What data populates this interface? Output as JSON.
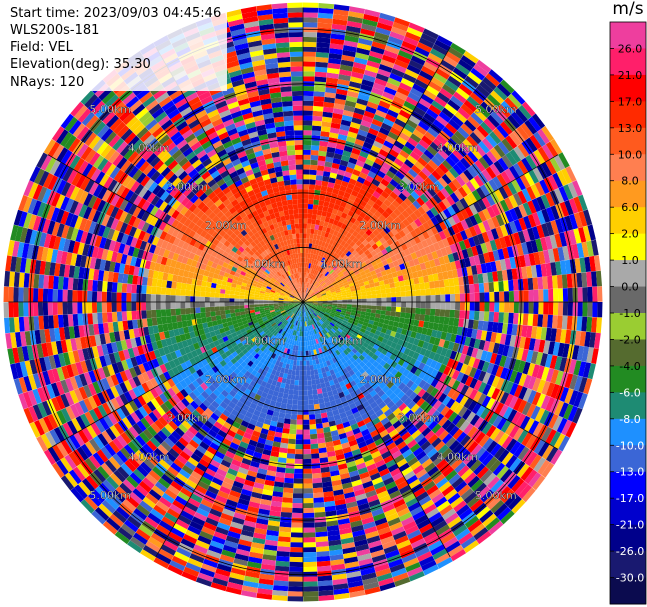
{
  "info": {
    "start_time": "Start time: 2023/09/03 04:45:46",
    "instrument": "WLS200s-181",
    "field": "Field: VEL",
    "elevation": "Elevation(deg): 35.30",
    "nrays": "NRays: 120"
  },
  "colorbar": {
    "unit": "m/s",
    "ticks": [
      "26.0",
      "21.0",
      "17.0",
      "13.0",
      "10.0",
      "8.0",
      "6.0",
      "2.0",
      "1.0",
      "0.0",
      "-1.0",
      "-2.0",
      "-4.0",
      "-6.0",
      "-8.0",
      "-10.0",
      "-13.0",
      "-17.0",
      "-21.0",
      "-26.0",
      "-30.0"
    ],
    "colors": [
      "#ee3e9e",
      "#ff1f6a",
      "#ff0000",
      "#ff2a00",
      "#ff5a1e",
      "#ff7f50",
      "#ff9a1f",
      "#ffcf00",
      "#ffff00",
      "#a9a9a9",
      "#696969",
      "#9acd32",
      "#556b2f",
      "#228b22",
      "#1e8b73",
      "#1e90ff",
      "#3b66d6",
      "#0000ff",
      "#0000cd",
      "#00008b",
      "#191970",
      "#0b0b4f"
    ]
  },
  "chart_data": {
    "type": "heatmap",
    "subtype": "PPI radar velocity scan",
    "field": "VEL",
    "units": "m/s",
    "n_rays": 120,
    "elevation_deg": 35.3,
    "range_rings_km": [
      1.0,
      2.0,
      3.0,
      4.0,
      5.0
    ],
    "ring_labels": [
      "1.00km",
      "2.00km",
      "3.00km",
      "4.00km",
      "5.00km"
    ],
    "max_range_km": 5.4,
    "color_scale_min": -30.0,
    "color_scale_max": 30.0,
    "north_hemisphere_velocity_ms": [
      1.0,
      17.0
    ],
    "south_hemisphere_velocity_ms": [
      -13.0,
      -2.0
    ],
    "clean_echo_range_km": [
      0.0,
      2.6
    ],
    "noise_beyond_km": 2.6,
    "grid": true
  }
}
